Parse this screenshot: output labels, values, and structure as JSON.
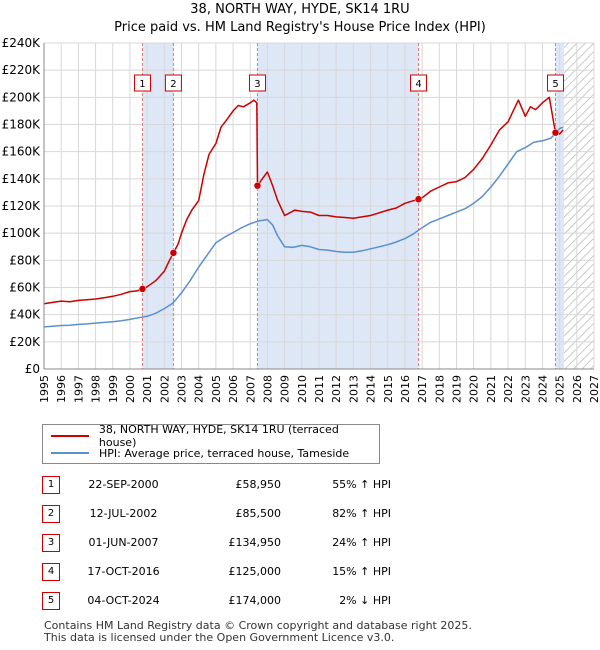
{
  "header": {
    "title": "38, NORTH WAY, HYDE, SK14 1RU",
    "subtitle": "Price paid vs. HM Land Registry's House Price Index (HPI)"
  },
  "colors": {
    "property": "#cc0000",
    "hpi": "#5b8fd0",
    "band": "#dde7f5",
    "vline": "#e07a7a",
    "grid": "#d8d8d8"
  },
  "chart_data": {
    "type": "line",
    "title": "Price paid vs. HM Land Registry's House Price Index (HPI)",
    "xlim": [
      1995,
      2027
    ],
    "ylim": [
      0,
      240000
    ],
    "x_ticks": [
      "1995",
      "1996",
      "1997",
      "1998",
      "1999",
      "2000",
      "2001",
      "2002",
      "2003",
      "2004",
      "2005",
      "2006",
      "2007",
      "2008",
      "2009",
      "2010",
      "2011",
      "2012",
      "2013",
      "2014",
      "2015",
      "2016",
      "2017",
      "2018",
      "2019",
      "2020",
      "2021",
      "2022",
      "2023",
      "2024",
      "2025",
      "2026",
      "2027"
    ],
    "y_ticks": [
      "£0",
      "£20K",
      "£40K",
      "£60K",
      "£80K",
      "£100K",
      "£120K",
      "£140K",
      "£160K",
      "£180K",
      "£200K",
      "£220K",
      "£240K"
    ],
    "y_tick_values": [
      0,
      20000,
      40000,
      60000,
      80000,
      100000,
      120000,
      140000,
      160000,
      180000,
      200000,
      220000,
      240000
    ],
    "shaded_ranges": [
      [
        2000.73,
        2002.53
      ],
      [
        2007.42,
        2016.79
      ],
      [
        2024.76,
        2025.25
      ]
    ],
    "hatched_from": 2025.25,
    "series": [
      {
        "name": "38, NORTH WAY, HYDE, SK14 1RU (terraced house)",
        "x": [
          1995,
          1995.5,
          1996,
          1996.5,
          1997,
          1997.5,
          1998,
          1998.5,
          1999,
          1999.5,
          2000,
          2000.4,
          2000.73,
          2001,
          2001.5,
          2002,
          2002.3,
          2002.53,
          2002.8,
          2003,
          2003.3,
          2003.6,
          2004,
          2004.3,
          2004.6,
          2005,
          2005.3,
          2005.6,
          2006,
          2006.3,
          2006.6,
          2007,
          2007.2,
          2007.38,
          2007.42,
          2007.7,
          2008,
          2008.3,
          2008.6,
          2009,
          2009.3,
          2009.6,
          2010,
          2010.5,
          2011,
          2011.5,
          2012,
          2012.5,
          2013,
          2013.5,
          2014,
          2014.5,
          2015,
          2015.5,
          2016,
          2016.4,
          2016.79,
          2017,
          2017.5,
          2018,
          2018.5,
          2019,
          2019.5,
          2020,
          2020.5,
          2021,
          2021.5,
          2022,
          2022.3,
          2022.6,
          2023,
          2023.3,
          2023.6,
          2024,
          2024.4,
          2024.7,
          2024.76,
          2025,
          2025.2
        ],
        "values": [
          48000,
          49000,
          50000,
          49500,
          50500,
          51000,
          51500,
          52500,
          53500,
          55000,
          57000,
          57500,
          58950,
          60500,
          65000,
          72000,
          80000,
          85500,
          92000,
          100000,
          110000,
          117000,
          124000,
          143000,
          158000,
          166000,
          178000,
          183000,
          190000,
          194000,
          193000,
          196000,
          198000,
          196000,
          134950,
          140000,
          145000,
          135000,
          124000,
          113000,
          115000,
          117000,
          116000,
          115500,
          113000,
          113000,
          112000,
          111500,
          111000,
          112000,
          113000,
          115000,
          117000,
          118500,
          122000,
          123500,
          125000,
          126000,
          131000,
          134000,
          137000,
          138000,
          141000,
          147000,
          155000,
          165000,
          176000,
          182000,
          190000,
          198000,
          186000,
          193000,
          191000,
          196000,
          200000,
          178000,
          174000,
          173000,
          176000
        ],
        "color": "#cc0000"
      },
      {
        "name": "HPI: Average price, terraced house, Tameside",
        "x": [
          1995,
          1995.5,
          1996,
          1996.5,
          1997,
          1997.5,
          1998,
          1998.5,
          1999,
          1999.5,
          2000,
          2000.5,
          2001,
          2001.5,
          2002,
          2002.5,
          2003,
          2003.5,
          2004,
          2004.5,
          2005,
          2005.5,
          2006,
          2006.5,
          2007,
          2007.5,
          2008,
          2008.3,
          2008.6,
          2009,
          2009.5,
          2010,
          2010.5,
          2011,
          2011.5,
          2012,
          2012.5,
          2013,
          2013.5,
          2014,
          2014.5,
          2015,
          2015.5,
          2016,
          2016.5,
          2017,
          2017.5,
          2018,
          2018.5,
          2019,
          2019.5,
          2020,
          2020.5,
          2021,
          2021.5,
          2022,
          2022.5,
          2023,
          2023.5,
          2024,
          2024.5,
          2025,
          2025.2
        ],
        "values": [
          31000,
          31500,
          32000,
          32200,
          32800,
          33200,
          33800,
          34300,
          34800,
          35500,
          36500,
          37800,
          38800,
          41000,
          44500,
          48500,
          56000,
          65000,
          75000,
          84000,
          93000,
          97000,
          100500,
          104000,
          107000,
          109000,
          110000,
          106000,
          98000,
          90000,
          89500,
          91000,
          90000,
          88000,
          87500,
          86500,
          86000,
          86000,
          87000,
          88500,
          90000,
          91500,
          93500,
          96000,
          99500,
          104000,
          108000,
          110500,
          113000,
          115500,
          118000,
          122000,
          127000,
          134000,
          142000,
          151000,
          160000,
          163000,
          167000,
          168000,
          170000,
          177000,
          178000
        ],
        "color": "#5b8fd0"
      }
    ],
    "transactions": [
      {
        "n": "1",
        "x": 2000.73,
        "y": 58950
      },
      {
        "n": "2",
        "x": 2002.53,
        "y": 85500
      },
      {
        "n": "3",
        "x": 2007.42,
        "y": 134950
      },
      {
        "n": "4",
        "x": 2016.79,
        "y": 125000
      },
      {
        "n": "5",
        "x": 2024.76,
        "y": 174000
      }
    ]
  },
  "legend": {
    "property_label": "38, NORTH WAY, HYDE, SK14 1RU (terraced house)",
    "hpi_label": "HPI: Average price, terraced house, Tameside"
  },
  "table": {
    "rows": [
      {
        "n": "1",
        "date": "22-SEP-2000",
        "price": "£58,950",
        "hpi": "55% ↑ HPI"
      },
      {
        "n": "2",
        "date": "12-JUL-2002",
        "price": "£85,500",
        "hpi": "82% ↑ HPI"
      },
      {
        "n": "3",
        "date": "01-JUN-2007",
        "price": "£134,950",
        "hpi": "24% ↑ HPI"
      },
      {
        "n": "4",
        "date": "17-OCT-2016",
        "price": "£125,000",
        "hpi": "15% ↑ HPI"
      },
      {
        "n": "5",
        "date": "04-OCT-2024",
        "price": "£174,000",
        "hpi": "2% ↓ HPI"
      }
    ]
  },
  "footer": {
    "line1": "Contains HM Land Registry data © Crown copyright and database right 2025.",
    "line2": "This data is licensed under the Open Government Licence v3.0."
  }
}
